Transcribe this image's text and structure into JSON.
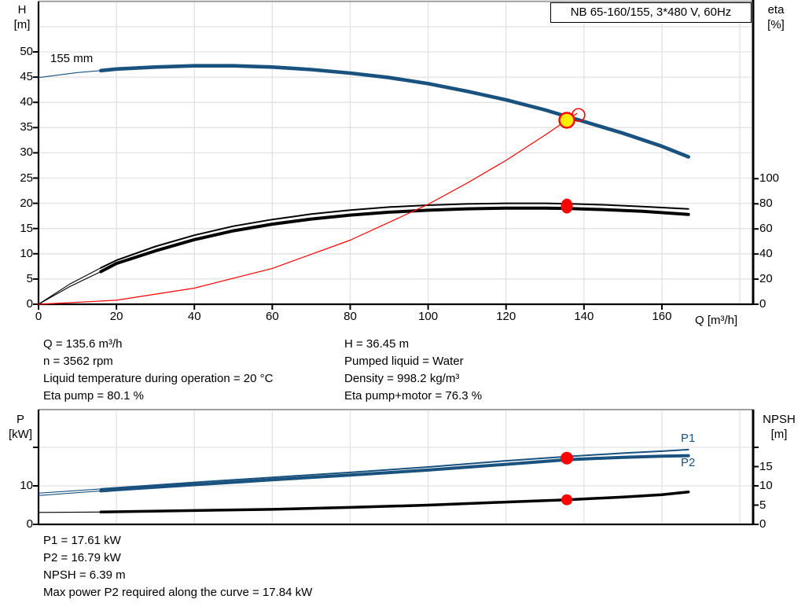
{
  "title_box": {
    "text": "NB 65-160/155, 3*480 V, 60Hz"
  },
  "colors": {
    "blue": "#19517f",
    "black": "#000000",
    "red": "#ff0000",
    "yellow": "#ffec00",
    "grid": "#e2e2e2",
    "border": "#a0a0a0",
    "axis": "#000000"
  },
  "chart_data": [
    {
      "type": "line",
      "title": "NB 65-160/155, 3*480 V, 60Hz",
      "x_axis": {
        "label": "Q [m³/h]",
        "min": 0,
        "max": 183.3,
        "ticks": [
          0,
          20,
          40,
          60,
          80,
          100,
          120,
          140,
          160
        ]
      },
      "y_left": {
        "name": "H",
        "unit": "[m]",
        "min": 0,
        "max": 60,
        "ticks": [
          0,
          5,
          10,
          15,
          20,
          25,
          30,
          35,
          40,
          45,
          50
        ],
        "tick_labels": [
          "0",
          "5",
          "10",
          "15",
          "20",
          "25",
          "30",
          "35",
          "40",
          "45",
          "50"
        ]
      },
      "y_right": {
        "name": "eta",
        "unit": "[%]",
        "min": 0,
        "max": 100,
        "ticks": [
          0,
          20,
          40,
          60,
          80,
          100
        ],
        "tick_labels": [
          "0",
          "20",
          "40",
          "60",
          "80",
          "100"
        ]
      },
      "series": [
        {
          "id": "head",
          "label": "155 mm",
          "axis": "left",
          "color": "blue",
          "width": 4.6,
          "thin_until": 16,
          "points": [
            [
              0,
              44.9
            ],
            [
              10,
              45.9
            ],
            [
              16,
              46.3
            ],
            [
              20,
              46.6
            ],
            [
              30,
              47.0
            ],
            [
              40,
              47.25
            ],
            [
              50,
              47.25
            ],
            [
              60,
              47.0
            ],
            [
              70,
              46.5
            ],
            [
              80,
              45.8
            ],
            [
              90,
              44.9
            ],
            [
              100,
              43.7
            ],
            [
              110,
              42.2
            ],
            [
              120,
              40.5
            ],
            [
              130,
              38.5
            ],
            [
              135.6,
              37.2
            ],
            [
              140,
              36.2
            ],
            [
              150,
              33.9
            ],
            [
              160,
              31.3
            ],
            [
              166.8,
              29.2
            ]
          ]
        },
        {
          "id": "eta-pump",
          "label": "Eta pump",
          "axis": "right",
          "color": "black",
          "width": 2,
          "thin_until": 16,
          "points": [
            [
              0,
              0
            ],
            [
              8,
              16
            ],
            [
              16,
              29
            ],
            [
              20,
              35
            ],
            [
              30,
              46
            ],
            [
              40,
              55
            ],
            [
              50,
              62.2
            ],
            [
              60,
              67.5
            ],
            [
              70,
              71.8
            ],
            [
              80,
              75.0
            ],
            [
              90,
              77.4
            ],
            [
              100,
              78.9
            ],
            [
              110,
              79.9
            ],
            [
              120,
              80.4
            ],
            [
              130,
              80.4
            ],
            [
              135.6,
              80.1
            ],
            [
              145,
              79.2
            ],
            [
              155,
              77.8
            ],
            [
              166.8,
              75.9
            ]
          ]
        },
        {
          "id": "eta-pump-motor",
          "label": "Eta pump+motor",
          "axis": "right",
          "color": "black",
          "width": 4,
          "thin_until": 16,
          "points": [
            [
              0,
              0
            ],
            [
              8,
              14
            ],
            [
              16,
              26
            ],
            [
              20,
              32.5
            ],
            [
              30,
              42.5
            ],
            [
              40,
              51.5
            ],
            [
              50,
              58.5
            ],
            [
              60,
              63.8
            ],
            [
              70,
              67.9
            ],
            [
              80,
              71.0
            ],
            [
              90,
              73.3
            ],
            [
              100,
              74.9
            ],
            [
              110,
              76.0
            ],
            [
              120,
              76.6
            ],
            [
              130,
              76.6
            ],
            [
              135.6,
              76.3
            ],
            [
              145,
              75.4
            ],
            [
              155,
              74.0
            ],
            [
              166.8,
              71.5
            ]
          ]
        },
        {
          "id": "system-curve",
          "label": "",
          "axis": "left",
          "color": "red",
          "width": 1.2,
          "thin_until": null,
          "points": [
            [
              0,
              0
            ],
            [
              20,
              0.8
            ],
            [
              40,
              3.2
            ],
            [
              60,
              7.1
            ],
            [
              80,
              12.7
            ],
            [
              100,
              19.8
            ],
            [
              110,
              24.0
            ],
            [
              120,
              28.5
            ],
            [
              130,
              33.5
            ],
            [
              135.6,
              36.45
            ],
            [
              138.2,
              37.8
            ]
          ]
        }
      ],
      "markers": [
        {
          "id": "duty-open-circle",
          "shape": "open-circle",
          "axis": "left",
          "q": 138.6,
          "v": 37.5,
          "r": 8
        },
        {
          "id": "duty-point",
          "shape": "circle",
          "axis": "left",
          "q": 135.6,
          "v": 36.45,
          "r": 9.5,
          "fill": "yellow",
          "stroke": "red"
        },
        {
          "id": "eta-duty-point",
          "shape": "ellipse",
          "axis": "right",
          "q": 135.6,
          "v": 78.2,
          "rx": 7.5,
          "ry": 9.5,
          "fill": "red"
        }
      ]
    },
    {
      "type": "line",
      "x_axis": {
        "label": "",
        "min": 0,
        "max": 183.3,
        "ticks": []
      },
      "y_left": {
        "name": "P",
        "unit": "[kW]",
        "min": 0,
        "max": 29.8,
        "ticks": [
          0,
          10,
          20
        ],
        "tick_labels": [
          "0",
          "10",
          ""
        ]
      },
      "y_right": {
        "name": "NPSH",
        "unit": "[m]",
        "min": 0,
        "max": 29.8,
        "ticks": [
          0,
          5,
          10,
          15,
          20
        ],
        "tick_labels": [
          "0",
          "5",
          "10",
          "15",
          ""
        ]
      },
      "series": [
        {
          "id": "p1",
          "label": "P1",
          "axis": "left",
          "color": "blue",
          "width": 2,
          "thin_until": 16,
          "points": [
            [
              0,
              8.1
            ],
            [
              16,
              9.2
            ],
            [
              20,
              9.5
            ],
            [
              40,
              10.9
            ],
            [
              60,
              12.2
            ],
            [
              80,
              13.5
            ],
            [
              100,
              14.9
            ],
            [
              120,
              16.5
            ],
            [
              135.6,
              17.61
            ],
            [
              150,
              18.5
            ],
            [
              160,
              19.0
            ],
            [
              166.8,
              19.4
            ]
          ]
        },
        {
          "id": "p2",
          "label": "P2",
          "axis": "left",
          "color": "blue",
          "width": 4,
          "thin_until": 16,
          "points": [
            [
              0,
              7.5
            ],
            [
              16,
              8.7
            ],
            [
              20,
              9.0
            ],
            [
              40,
              10.3
            ],
            [
              60,
              11.6
            ],
            [
              80,
              12.8
            ],
            [
              100,
              14.1
            ],
            [
              120,
              15.6
            ],
            [
              135.6,
              16.79
            ],
            [
              150,
              17.4
            ],
            [
              160,
              17.7
            ],
            [
              166.8,
              17.84
            ]
          ]
        },
        {
          "id": "npsh",
          "label": "NPSH",
          "axis": "right",
          "color": "black",
          "width": 3.5,
          "thin_until": 16,
          "points": [
            [
              0,
              3.1
            ],
            [
              16,
              3.2
            ],
            [
              40,
              3.6
            ],
            [
              60,
              3.9
            ],
            [
              80,
              4.4
            ],
            [
              100,
              5.0
            ],
            [
              120,
              5.8
            ],
            [
              135.6,
              6.39
            ],
            [
              150,
              7.1
            ],
            [
              160,
              7.7
            ],
            [
              166.8,
              8.4
            ]
          ]
        }
      ],
      "markers": [
        {
          "id": "power-duty-point",
          "shape": "circle",
          "axis": "left",
          "q": 135.6,
          "v": 17.2,
          "r": 8,
          "fill": "red"
        },
        {
          "id": "npsh-duty-point",
          "shape": "circle",
          "axis": "right",
          "q": 135.6,
          "v": 6.39,
          "r": 7,
          "fill": "red"
        }
      ]
    }
  ],
  "info_top": {
    "left": [
      "Q = 135.6 m³/h",
      "n = 3562 rpm",
      "Liquid temperature during operation = 20 °C",
      "Eta pump = 80.1 %"
    ],
    "right": [
      "H = 36.45 m",
      "Pumped liquid = Water",
      "Density = 998.2 kg/m³",
      "Eta pump+motor = 76.3 %"
    ]
  },
  "info_bottom": [
    "P1 = 17.61 kW",
    "P2 = 16.79 kW",
    "NPSH = 6.39 m",
    "Max power P2 required along the curve = 17.84 kW"
  ]
}
